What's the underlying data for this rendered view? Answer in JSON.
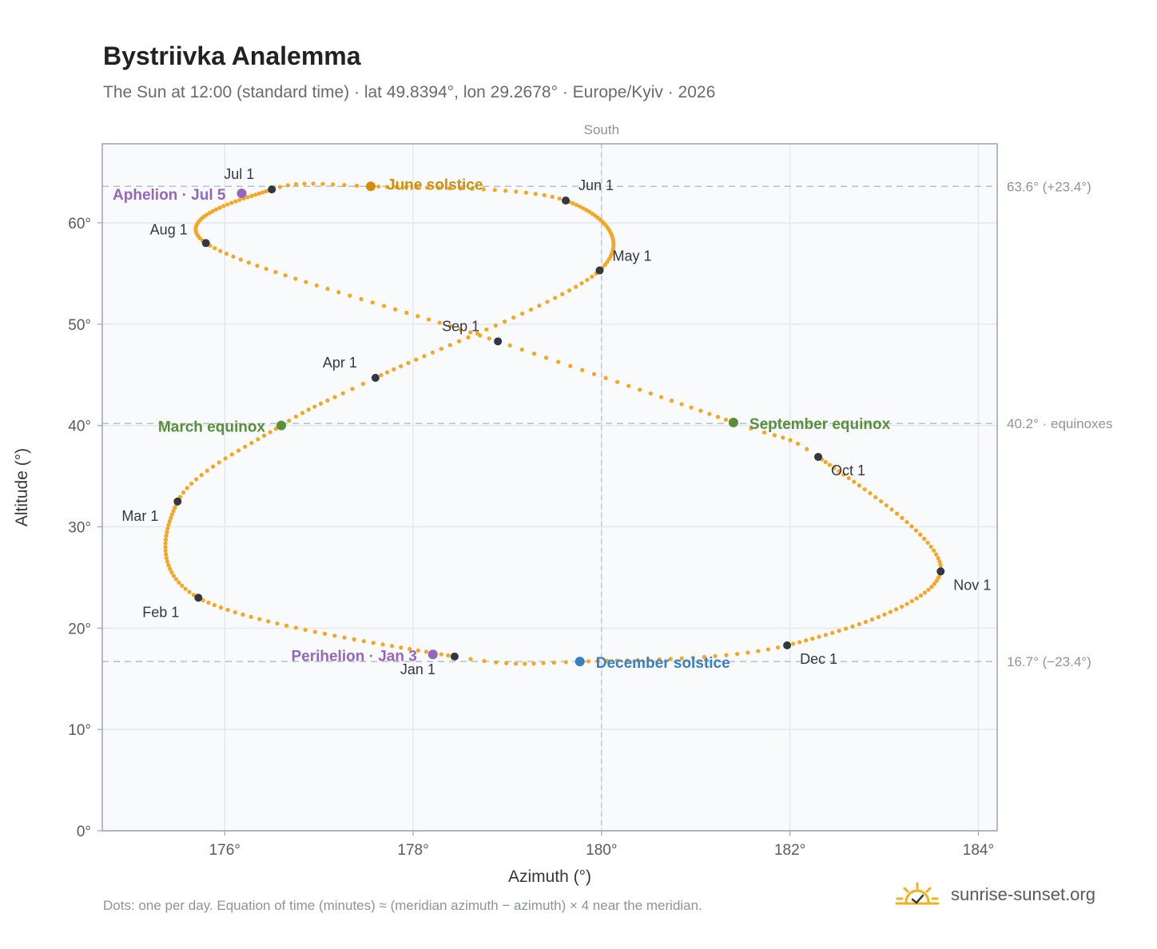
{
  "title": "Bystriivka Analemma",
  "subtitle": "The Sun at 12:00 (standard time) · lat 49.8394°, lon 29.2678° · Europe/Kyiv · 2026",
  "footer": {
    "note": "Dots: one per day. Equation of time (minutes) ≈ (meridian azimuth − azimuth) × 4 near the meridian.",
    "brand": "sunrise-sunset.org"
  },
  "colors": {
    "path": "#f5a623",
    "month_marker": "#333840",
    "aphelion_perihelion": "#9467bd",
    "june_solstice": "#d18f0a",
    "december_solstice": "#3a7fc1",
    "equinox": "#5a8f3a",
    "grid": "#e3e8ee",
    "plot_bg": "#f8fafc",
    "frame": "#9aa3ae",
    "reference_line": "#b4c0cc"
  },
  "chart_data": {
    "type": "scatter",
    "title": "Bystriivka Analemma",
    "xlabel": "Azimuth (°)",
    "ylabel": "Altitude (°)",
    "xlim": [
      174.7,
      184.2
    ],
    "ylim": [
      0,
      67.8
    ],
    "xticks": [
      176,
      178,
      180,
      182,
      184
    ],
    "xtick_labels": [
      "176°",
      "178°",
      "180°",
      "182°",
      "184°"
    ],
    "yticks": [
      0,
      10,
      20,
      30,
      40,
      50,
      60
    ],
    "ytick_labels": [
      "0°",
      "10°",
      "20°",
      "30°",
      "40°",
      "50°",
      "60°"
    ],
    "grid": true,
    "meridian": {
      "x": 180,
      "label": "South"
    },
    "reference_lines": [
      {
        "y": 63.6,
        "label": "63.6° (+23.4°)"
      },
      {
        "y": 40.2,
        "label": "40.2° · equinoxes"
      },
      {
        "y": 16.7,
        "label": "16.7° (−23.4°)"
      }
    ],
    "daily_path": {
      "note": "one dot per day",
      "anchors": [
        {
          "day": 0,
          "az": 178.44,
          "alt": 17.2
        },
        {
          "day": 31,
          "az": 175.72,
          "alt": 23.0
        },
        {
          "day": 59,
          "az": 175.5,
          "alt": 32.5
        },
        {
          "day": 78,
          "az": 176.6,
          "alt": 40.0
        },
        {
          "day": 90,
          "az": 177.6,
          "alt": 44.7
        },
        {
          "day": 120,
          "az": 179.98,
          "alt": 55.3
        },
        {
          "day": 151,
          "az": 179.62,
          "alt": 62.2
        },
        {
          "day": 171,
          "az": 177.55,
          "alt": 63.6
        },
        {
          "day": 181,
          "az": 176.5,
          "alt": 63.3
        },
        {
          "day": 212,
          "az": 175.8,
          "alt": 58.0
        },
        {
          "day": 243,
          "az": 178.9,
          "alt": 48.3
        },
        {
          "day": 265,
          "az": 181.4,
          "alt": 40.3
        },
        {
          "day": 273,
          "az": 182.3,
          "alt": 36.9
        },
        {
          "day": 304,
          "az": 183.6,
          "alt": 25.6
        },
        {
          "day": 334,
          "az": 181.97,
          "alt": 18.3
        },
        {
          "day": 354,
          "az": 179.77,
          "alt": 16.7
        },
        {
          "day": 365,
          "az": 178.44,
          "alt": 17.2
        }
      ]
    },
    "month_markers": [
      {
        "label": "Jan 1",
        "az": 178.44,
        "alt": 17.2,
        "dx": -68,
        "dy": 22
      },
      {
        "label": "Feb 1",
        "az": 175.72,
        "alt": 23.0,
        "dx": -70,
        "dy": 24
      },
      {
        "label": "Mar 1",
        "az": 175.5,
        "alt": 32.5,
        "dx": -70,
        "dy": 24
      },
      {
        "label": "Apr 1",
        "az": 177.6,
        "alt": 44.7,
        "dx": -66,
        "dy": -13
      },
      {
        "label": "May 1",
        "az": 179.98,
        "alt": 55.3,
        "dx": 16,
        "dy": -12
      },
      {
        "label": "Jun 1",
        "az": 179.62,
        "alt": 62.2,
        "dx": 16,
        "dy": -13
      },
      {
        "label": "Jul 1",
        "az": 176.5,
        "alt": 63.3,
        "dx": -60,
        "dy": -13
      },
      {
        "label": "Aug 1",
        "az": 175.8,
        "alt": 58.0,
        "dx": -70,
        "dy": -11
      },
      {
        "label": "Sep 1",
        "az": 178.9,
        "alt": 48.3,
        "dx": -70,
        "dy": -13
      },
      {
        "label": "Oct 1",
        "az": 182.3,
        "alt": 36.9,
        "dx": 16,
        "dy": 23
      },
      {
        "label": "Nov 1",
        "az": 183.6,
        "alt": 25.6,
        "dx": 16,
        "dy": 23
      },
      {
        "label": "Dec 1",
        "az": 181.97,
        "alt": 18.3,
        "dx": 16,
        "dy": 23
      }
    ],
    "special_points": [
      {
        "label": "June solstice",
        "az": 177.55,
        "alt": 63.6,
        "color_key": "june_solstice",
        "dx": 20,
        "dy": 4,
        "anchor": "start"
      },
      {
        "label": "December solstice",
        "az": 179.77,
        "alt": 16.7,
        "color_key": "december_solstice",
        "dx": 20,
        "dy": 8,
        "anchor": "start"
      },
      {
        "label": "March equinox",
        "az": 176.6,
        "alt": 40.0,
        "color_key": "equinox",
        "dx": -20,
        "dy": 8,
        "anchor": "end"
      },
      {
        "label": "September equinox",
        "az": 181.4,
        "alt": 40.3,
        "color_key": "equinox",
        "dx": 20,
        "dy": 8,
        "anchor": "start"
      },
      {
        "label": "Aphelion · Jul 5",
        "az": 176.18,
        "alt": 62.9,
        "color_key": "aphelion_perihelion",
        "dx": -20,
        "dy": 8,
        "anchor": "end"
      },
      {
        "label": "Perihelion · Jan 3",
        "az": 178.21,
        "alt": 17.4,
        "color_key": "aphelion_perihelion",
        "dx": -20,
        "dy": 8,
        "anchor": "end"
      }
    ]
  }
}
